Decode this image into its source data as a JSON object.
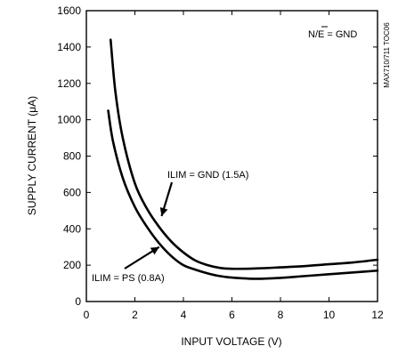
{
  "chart_data": {
    "type": "line",
    "xlabel": "INPUT VOLTAGE (V)",
    "ylabel": "SUPPLY CURRENT (μA)",
    "xlim": [
      0,
      12
    ],
    "ylim": [
      0,
      1600
    ],
    "x_ticks": [
      0,
      2,
      4,
      6,
      8,
      10,
      12
    ],
    "y_ticks": [
      0,
      200,
      400,
      600,
      800,
      1000,
      1200,
      1400,
      1600
    ],
    "grid": false,
    "series": [
      {
        "name": "ILIM = GND (1.5A)",
        "x": [
          1.0,
          1.2,
          1.5,
          2.0,
          2.5,
          3.0,
          3.5,
          4.0,
          4.5,
          5.0,
          5.5,
          6.0,
          7.0,
          8.0,
          9.0,
          10.0,
          11.0,
          12.0
        ],
        "y": [
          1440,
          1150,
          900,
          650,
          510,
          410,
          330,
          270,
          225,
          200,
          185,
          180,
          182,
          188,
          195,
          205,
          215,
          230
        ]
      },
      {
        "name": "ILIM = PS (0.8A)",
        "x": [
          0.9,
          1.1,
          1.5,
          2.0,
          2.5,
          3.0,
          3.5,
          4.0,
          4.5,
          5.0,
          5.5,
          6.0,
          7.0,
          8.0,
          9.0,
          10.0,
          11.0,
          12.0
        ],
        "y": [
          1050,
          880,
          680,
          520,
          410,
          320,
          250,
          200,
          175,
          155,
          140,
          132,
          125,
          130,
          140,
          150,
          160,
          170
        ]
      }
    ],
    "annotations": [
      {
        "text": "ILIM = GND (1.5A)",
        "arrow_to_x": 3.1,
        "arrow_to_y": 470
      },
      {
        "text": "ILIM = PS (0.8A)",
        "arrow_to_x": 3.0,
        "arrow_to_y": 300
      },
      {
        "text": "N/E = GND"
      },
      {
        "text": "MAX710/711 TOC06"
      }
    ]
  }
}
